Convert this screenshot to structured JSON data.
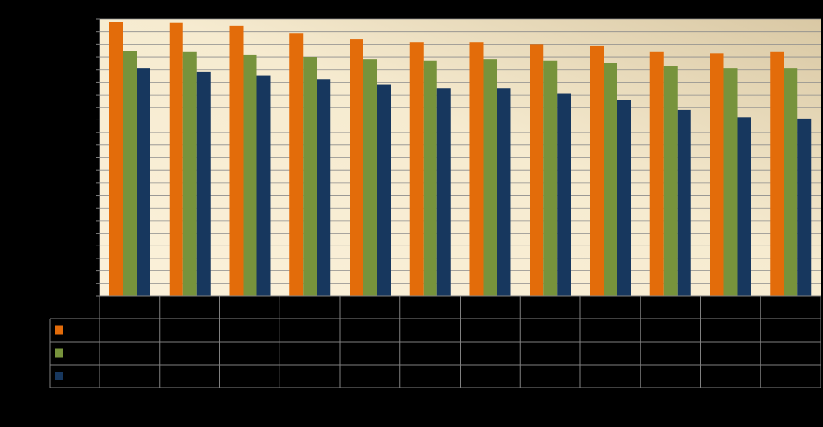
{
  "chart_data": {
    "type": "bar",
    "title": "",
    "xlabel": "",
    "ylabel": "",
    "ylim": [
      0,
      22
    ],
    "grid": true,
    "legend": "data-table",
    "categories": [
      "",
      "",
      "",
      "",
      "",
      "",
      "",
      "",
      "",
      "",
      "",
      ""
    ],
    "series": [
      {
        "color": "#E36C0A",
        "values": [
          21.8,
          21.7,
          21.5,
          20.9,
          20.4,
          20.2,
          20.2,
          20.0,
          19.9,
          19.4,
          19.3,
          19.4
        ]
      },
      {
        "color": "#77933C",
        "values": [
          19.5,
          19.4,
          19.2,
          19.0,
          18.8,
          18.7,
          18.8,
          18.7,
          18.5,
          18.3,
          18.1,
          18.1
        ]
      },
      {
        "color": "#17375E",
        "values": [
          18.1,
          17.8,
          17.5,
          17.2,
          16.8,
          16.5,
          16.5,
          16.1,
          15.6,
          14.8,
          14.2,
          14.1
        ]
      }
    ]
  }
}
